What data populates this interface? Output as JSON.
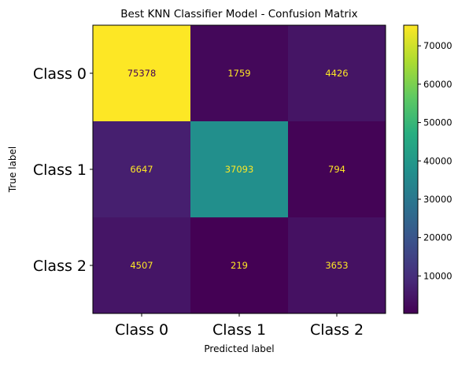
{
  "chart_data": {
    "type": "heatmap",
    "title": "Best KNN Classifier Model - Confusion Matrix",
    "xlabel": "Predicted label",
    "ylabel": "True label",
    "x_categories": [
      "Class 0",
      "Class 1",
      "Class 2"
    ],
    "y_categories": [
      "Class 0",
      "Class 1",
      "Class 2"
    ],
    "values": [
      [
        75378,
        1759,
        4426
      ],
      [
        6647,
        37093,
        794
      ],
      [
        4507,
        219,
        3653
      ]
    ],
    "colormap": "viridis",
    "colorbar": {
      "range": [
        219,
        75378
      ],
      "ticks": [
        10000,
        20000,
        30000,
        40000,
        50000,
        60000,
        70000
      ],
      "tick_labels": [
        "10000",
        "20000",
        "30000",
        "40000",
        "50000",
        "60000",
        "70000"
      ]
    },
    "text_colors": {
      "light_cells": "#440154",
      "dark_cells": "#fde725"
    },
    "grid": false
  }
}
